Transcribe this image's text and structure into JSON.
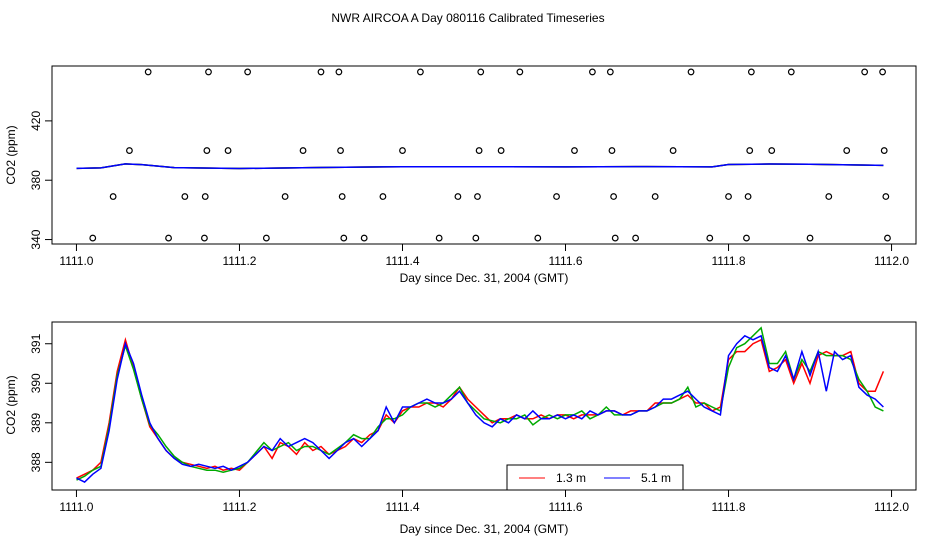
{
  "title": "NWR AIRCOA A  Day 080116  Calibrated Timeseries",
  "chart_data": [
    {
      "type": "scatter",
      "xlabel": "Day since Dec. 31, 2004 (GMT)",
      "ylabel": "CO2 (ppm)",
      "xlim": [
        1110.97,
        1112.03
      ],
      "ylim": [
        337,
        457
      ],
      "x_ticks": [
        "1111.0",
        "1111.2",
        "1111.4",
        "1111.6",
        "1111.8",
        "1112.0"
      ],
      "x_tick_values": [
        1111.0,
        1111.2,
        1111.4,
        1111.6,
        1111.8,
        1112.0
      ],
      "y_ticks": [
        "340",
        "380",
        "420"
      ],
      "y_tick_values": [
        340,
        380,
        420
      ],
      "grid": false,
      "line_colors": [
        "#ff0000",
        "#00aa00",
        "#0000ff"
      ],
      "line": {
        "x": [
          1111.0,
          1111.03,
          1111.06,
          1111.08,
          1111.12,
          1111.2,
          1111.3,
          1111.4,
          1111.5,
          1111.6,
          1111.7,
          1111.78,
          1111.8,
          1111.85,
          1111.9,
          1111.95,
          1111.99
        ],
        "y": [
          388,
          388.3,
          391,
          390.5,
          388.5,
          387.9,
          388.6,
          389.1,
          389.1,
          389.0,
          389.2,
          389.0,
          390.6,
          390.9,
          390.8,
          390.3,
          390.0
        ]
      },
      "points": [
        {
          "x": 1111.02,
          "y": 341
        },
        {
          "x": 1111.045,
          "y": 369
        },
        {
          "x": 1111.065,
          "y": 400
        },
        {
          "x": 1111.088,
          "y": 453
        },
        {
          "x": 1111.113,
          "y": 341
        },
        {
          "x": 1111.133,
          "y": 369
        },
        {
          "x": 1111.157,
          "y": 341
        },
        {
          "x": 1111.158,
          "y": 369
        },
        {
          "x": 1111.16,
          "y": 400
        },
        {
          "x": 1111.162,
          "y": 453
        },
        {
          "x": 1111.186,
          "y": 400
        },
        {
          "x": 1111.21,
          "y": 453
        },
        {
          "x": 1111.233,
          "y": 341
        },
        {
          "x": 1111.256,
          "y": 369
        },
        {
          "x": 1111.278,
          "y": 400
        },
        {
          "x": 1111.3,
          "y": 453
        },
        {
          "x": 1111.322,
          "y": 453
        },
        {
          "x": 1111.324,
          "y": 400
        },
        {
          "x": 1111.326,
          "y": 369
        },
        {
          "x": 1111.328,
          "y": 341
        },
        {
          "x": 1111.353,
          "y": 341
        },
        {
          "x": 1111.376,
          "y": 369
        },
        {
          "x": 1111.4,
          "y": 400
        },
        {
          "x": 1111.422,
          "y": 453
        },
        {
          "x": 1111.445,
          "y": 341
        },
        {
          "x": 1111.468,
          "y": 369
        },
        {
          "x": 1111.49,
          "y": 341
        },
        {
          "x": 1111.492,
          "y": 369
        },
        {
          "x": 1111.494,
          "y": 400
        },
        {
          "x": 1111.496,
          "y": 453
        },
        {
          "x": 1111.521,
          "y": 400
        },
        {
          "x": 1111.544,
          "y": 453
        },
        {
          "x": 1111.566,
          "y": 341
        },
        {
          "x": 1111.589,
          "y": 369
        },
        {
          "x": 1111.611,
          "y": 400
        },
        {
          "x": 1111.633,
          "y": 453
        },
        {
          "x": 1111.655,
          "y": 453
        },
        {
          "x": 1111.657,
          "y": 400
        },
        {
          "x": 1111.659,
          "y": 369
        },
        {
          "x": 1111.661,
          "y": 341
        },
        {
          "x": 1111.686,
          "y": 341
        },
        {
          "x": 1111.71,
          "y": 369
        },
        {
          "x": 1111.732,
          "y": 400
        },
        {
          "x": 1111.754,
          "y": 453
        },
        {
          "x": 1111.777,
          "y": 341
        },
        {
          "x": 1111.8,
          "y": 369
        },
        {
          "x": 1111.822,
          "y": 341
        },
        {
          "x": 1111.824,
          "y": 369
        },
        {
          "x": 1111.826,
          "y": 400
        },
        {
          "x": 1111.828,
          "y": 453
        },
        {
          "x": 1111.853,
          "y": 400
        },
        {
          "x": 1111.877,
          "y": 453
        },
        {
          "x": 1111.9,
          "y": 341
        },
        {
          "x": 1111.923,
          "y": 369
        },
        {
          "x": 1111.945,
          "y": 400
        },
        {
          "x": 1111.967,
          "y": 453
        },
        {
          "x": 1111.989,
          "y": 453
        },
        {
          "x": 1111.991,
          "y": 400
        },
        {
          "x": 1111.993,
          "y": 369
        },
        {
          "x": 1111.995,
          "y": 341
        }
      ]
    },
    {
      "type": "line",
      "xlabel": "Day since Dec. 31, 2004 (GMT)",
      "ylabel": "CO2 (ppm)",
      "xlim": [
        1110.97,
        1112.03
      ],
      "ylim": [
        387.3,
        391.55
      ],
      "x_ticks": [
        "1111.0",
        "1111.2",
        "1111.4",
        "1111.6",
        "1111.8",
        "1112.0"
      ],
      "x_tick_values": [
        1111.0,
        1111.2,
        1111.4,
        1111.6,
        1111.8,
        1112.0
      ],
      "y_ticks": [
        "388",
        "389",
        "390",
        "391"
      ],
      "y_tick_values": [
        388,
        389,
        390,
        391
      ],
      "grid": false,
      "legend_position": "bottom-center",
      "x": [
        1111.0,
        1111.01,
        1111.02,
        1111.03,
        1111.04,
        1111.05,
        1111.06,
        1111.07,
        1111.08,
        1111.09,
        1111.1,
        1111.11,
        1111.12,
        1111.13,
        1111.14,
        1111.15,
        1111.16,
        1111.17,
        1111.18,
        1111.19,
        1111.2,
        1111.21,
        1111.22,
        1111.23,
        1111.24,
        1111.25,
        1111.26,
        1111.27,
        1111.28,
        1111.29,
        1111.3,
        1111.31,
        1111.32,
        1111.33,
        1111.34,
        1111.35,
        1111.36,
        1111.37,
        1111.38,
        1111.39,
        1111.4,
        1111.41,
        1111.42,
        1111.43,
        1111.44,
        1111.45,
        1111.46,
        1111.47,
        1111.48,
        1111.49,
        1111.5,
        1111.51,
        1111.52,
        1111.53,
        1111.54,
        1111.55,
        1111.56,
        1111.57,
        1111.58,
        1111.59,
        1111.6,
        1111.61,
        1111.62,
        1111.63,
        1111.64,
        1111.65,
        1111.66,
        1111.67,
        1111.68,
        1111.69,
        1111.7,
        1111.71,
        1111.72,
        1111.73,
        1111.74,
        1111.75,
        1111.76,
        1111.77,
        1111.78,
        1111.79,
        1111.8,
        1111.81,
        1111.82,
        1111.83,
        1111.84,
        1111.85,
        1111.86,
        1111.87,
        1111.88,
        1111.89,
        1111.9,
        1111.91,
        1111.92,
        1111.93,
        1111.94,
        1111.95,
        1111.96,
        1111.97,
        1111.98,
        1111.99
      ],
      "series": [
        {
          "name": "1.3 m",
          "color": "#ff0000",
          "values": [
            387.6,
            387.7,
            387.8,
            388.0,
            389.0,
            390.3,
            391.1,
            390.4,
            389.6,
            388.9,
            388.6,
            388.3,
            388.1,
            388.0,
            387.95,
            387.9,
            387.85,
            387.9,
            387.8,
            387.85,
            387.8,
            388.0,
            388.2,
            388.4,
            388.1,
            388.5,
            388.4,
            388.2,
            388.5,
            388.3,
            388.4,
            388.2,
            388.3,
            388.4,
            388.6,
            388.5,
            388.7,
            388.8,
            389.2,
            389.0,
            389.3,
            389.4,
            389.4,
            389.5,
            389.5,
            389.4,
            389.6,
            389.9,
            389.6,
            389.4,
            389.2,
            389.0,
            389.1,
            389.1,
            389.2,
            389.1,
            389.1,
            389.2,
            389.1,
            389.2,
            389.2,
            389.1,
            389.2,
            389.2,
            389.2,
            389.3,
            389.3,
            389.2,
            389.3,
            389.3,
            389.3,
            389.5,
            389.5,
            389.5,
            389.6,
            389.7,
            389.5,
            389.5,
            389.3,
            389.4,
            390.6,
            390.8,
            390.8,
            391.0,
            391.1,
            390.3,
            390.4,
            390.6,
            390.0,
            390.5,
            390.0,
            390.7,
            390.8,
            390.7,
            390.7,
            390.8,
            390.0,
            389.8,
            389.8,
            390.3
          ]
        },
        {
          "name": "",
          "color": "#00aa00",
          "values": [
            387.55,
            387.65,
            387.8,
            387.9,
            388.9,
            390.2,
            390.95,
            390.35,
            389.6,
            388.95,
            388.7,
            388.4,
            388.15,
            388.0,
            387.9,
            387.85,
            387.8,
            387.8,
            387.75,
            387.8,
            387.85,
            388.0,
            388.25,
            388.5,
            388.3,
            388.4,
            388.5,
            388.3,
            388.4,
            388.4,
            388.3,
            388.2,
            388.35,
            388.5,
            388.7,
            388.6,
            388.6,
            388.9,
            389.1,
            389.1,
            389.2,
            389.4,
            389.5,
            389.5,
            389.4,
            389.5,
            389.7,
            389.9,
            389.5,
            389.3,
            389.1,
            389.05,
            389.0,
            389.1,
            389.1,
            389.2,
            388.95,
            389.1,
            389.2,
            389.1,
            389.2,
            389.2,
            389.3,
            389.1,
            389.2,
            389.4,
            389.2,
            389.2,
            389.2,
            389.3,
            389.3,
            389.4,
            389.5,
            389.5,
            389.6,
            389.9,
            389.4,
            389.5,
            389.4,
            389.3,
            390.4,
            390.9,
            391.0,
            391.2,
            391.4,
            390.5,
            390.5,
            390.8,
            390.1,
            390.6,
            390.3,
            390.8,
            390.7,
            390.7,
            390.7,
            390.6,
            390.1,
            389.8,
            389.4,
            389.3
          ]
        },
        {
          "name": "5.1 m",
          "color": "#0000ff",
          "values": [
            387.6,
            387.5,
            387.7,
            387.85,
            388.8,
            390.1,
            391.0,
            390.5,
            389.7,
            389.0,
            388.6,
            388.3,
            388.1,
            387.95,
            387.9,
            387.95,
            387.9,
            387.85,
            387.9,
            387.8,
            387.9,
            388.0,
            388.2,
            388.4,
            388.3,
            388.6,
            388.4,
            388.5,
            388.6,
            388.5,
            388.3,
            388.1,
            388.3,
            388.5,
            388.6,
            388.4,
            388.6,
            388.8,
            389.4,
            389.0,
            389.4,
            389.4,
            389.5,
            389.6,
            389.5,
            389.5,
            389.6,
            389.8,
            389.5,
            389.2,
            389.0,
            388.9,
            389.1,
            389.0,
            389.2,
            389.1,
            389.3,
            389.1,
            389.1,
            389.2,
            389.1,
            389.2,
            389.1,
            389.3,
            389.2,
            389.3,
            389.3,
            389.2,
            389.2,
            389.3,
            389.3,
            389.4,
            389.6,
            389.6,
            389.7,
            389.8,
            389.6,
            389.4,
            389.3,
            389.2,
            390.7,
            391.0,
            391.2,
            391.1,
            391.2,
            390.4,
            390.3,
            390.7,
            390.1,
            390.8,
            390.2,
            390.8,
            389.8,
            390.8,
            390.6,
            390.7,
            389.9,
            389.7,
            389.6,
            389.4
          ]
        }
      ]
    }
  ]
}
